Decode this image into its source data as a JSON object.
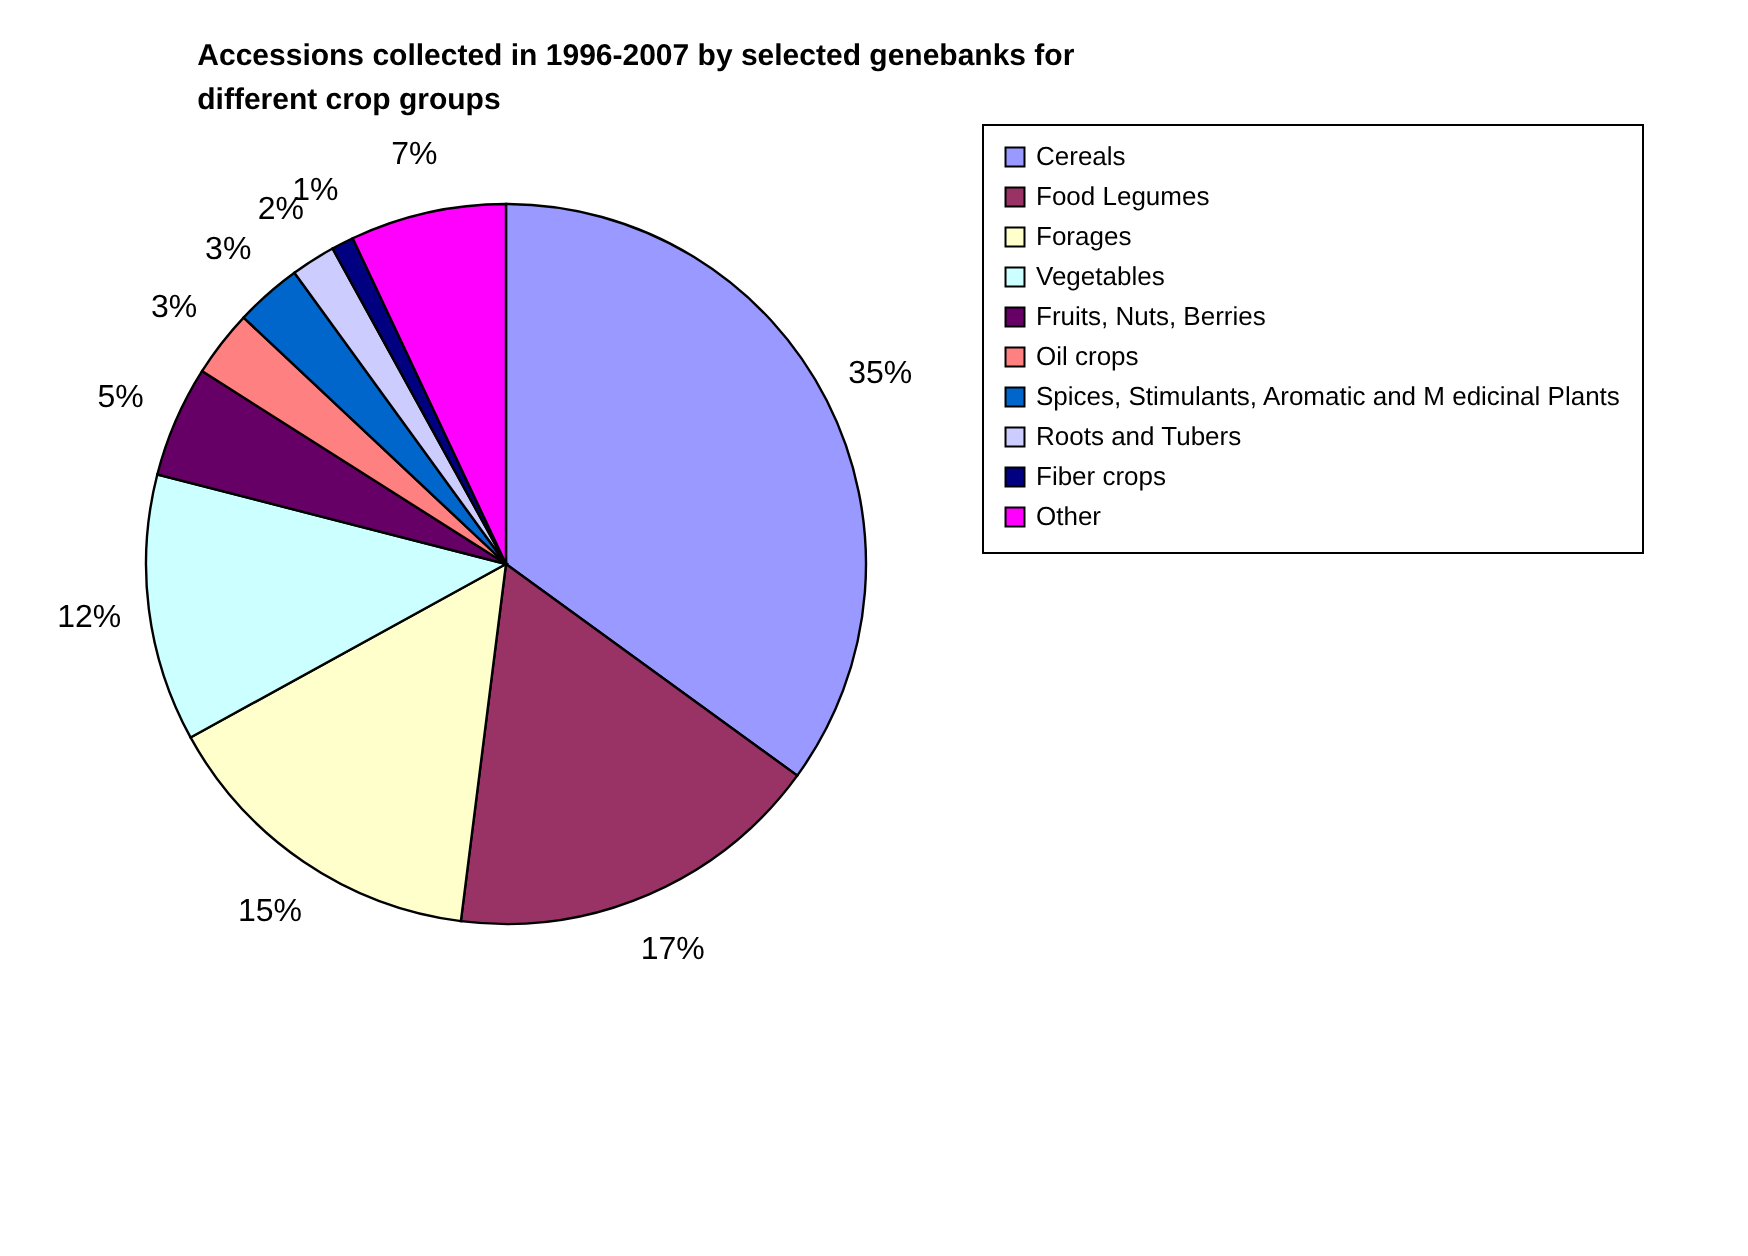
{
  "chart_data": {
    "type": "pie",
    "title": "Accessions collected in 1996-2007 by selected genebanks for different crop groups",
    "categories": [
      "Cereals",
      "Food Legumes",
      "Forages",
      "Vegetables",
      "Fruits, Nuts, Berries",
      "Oil crops",
      "Spices, Stimulants, Aromatic and M edicinal Plants",
      "Roots and Tubers",
      "Fiber crops",
      "Other"
    ],
    "values": [
      35,
      17,
      15,
      12,
      5,
      3,
      3,
      2,
      1,
      7
    ],
    "value_labels": [
      "35%",
      "17%",
      "15%",
      "12%",
      "5%",
      "3%",
      "3%",
      "2%",
      "1%",
      "7%"
    ],
    "colors": [
      "#9999ff",
      "#993366",
      "#ffffcc",
      "#ccffff",
      "#660066",
      "#ff8080",
      "#0066cc",
      "#ccccff",
      "#000080",
      "#ff00ff"
    ],
    "legend": "right"
  }
}
